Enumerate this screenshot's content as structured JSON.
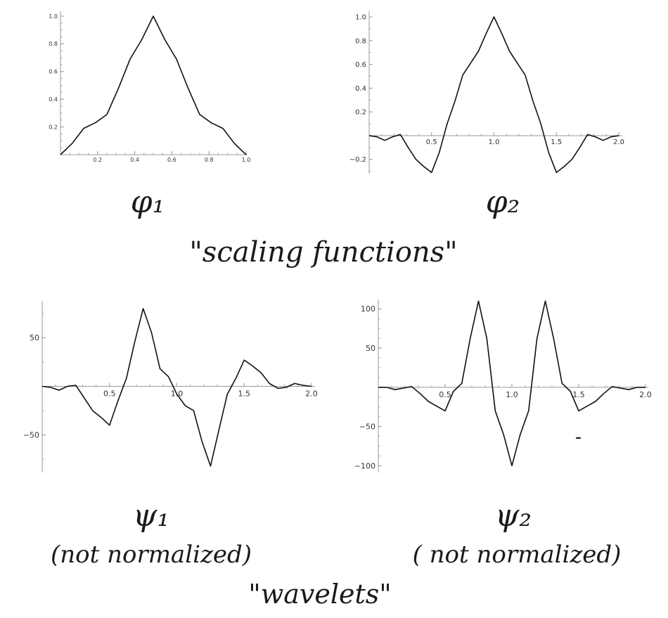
{
  "chart_data": [
    {
      "type": "line",
      "x": [
        0,
        0.0625,
        0.125,
        0.1875,
        0.25,
        0.3125,
        0.375,
        0.4375,
        0.5,
        0.5625,
        0.625,
        0.6875,
        0.75,
        0.8125,
        0.875,
        0.9375,
        1.0
      ],
      "y": [
        0,
        0.08,
        0.19,
        0.23,
        0.29,
        0.48,
        0.69,
        0.83,
        1.0,
        0.83,
        0.69,
        0.48,
        0.29,
        0.23,
        0.19,
        0.08,
        0
      ],
      "xlim": [
        0,
        1.0
      ],
      "ylim": [
        0,
        1.0
      ],
      "xticks": [
        0.2,
        0.4,
        0.6,
        0.8,
        1.0
      ],
      "yticks": [
        0.2,
        0.4,
        0.6,
        0.8,
        1.0
      ],
      "xtick_labels": [
        "0.2",
        "0.4",
        "0.6",
        "0.8",
        "1.0"
      ],
      "ytick_labels": [
        "0.2",
        "0.4",
        "0.6",
        "0.8",
        "1.0"
      ],
      "grid": false
    },
    {
      "type": "line",
      "x": [
        0,
        0.0625,
        0.125,
        0.1875,
        0.25,
        0.3125,
        0.375,
        0.4375,
        0.5,
        0.5625,
        0.625,
        0.6875,
        0.75,
        0.8125,
        0.875,
        0.9375,
        1.0,
        1.0625,
        1.125,
        1.1875,
        1.25,
        1.3125,
        1.375,
        1.4375,
        1.5,
        1.5625,
        1.625,
        1.6875,
        1.75,
        1.8125,
        1.875,
        1.9375,
        2.0
      ],
      "y": [
        0,
        -0.01,
        -0.04,
        -0.01,
        0.01,
        -0.1,
        -0.2,
        -0.26,
        -0.31,
        -0.14,
        0.1,
        0.29,
        0.51,
        0.61,
        0.71,
        0.86,
        1.0,
        0.86,
        0.71,
        0.61,
        0.51,
        0.29,
        0.1,
        -0.14,
        -0.31,
        -0.26,
        -0.2,
        -0.1,
        0.01,
        -0.01,
        -0.04,
        -0.01,
        0
      ],
      "xlim": [
        0,
        2.0
      ],
      "ylim": [
        -0.32,
        1.0
      ],
      "xticks": [
        0.5,
        1.0,
        1.5,
        2.0
      ],
      "yticks": [
        -0.2,
        0.2,
        0.4,
        0.6,
        0.8,
        1.0
      ],
      "xtick_labels": [
        "0.5",
        "1.0",
        "1.5",
        "2.0"
      ],
      "ytick_labels": [
        "−0.2",
        "0.2",
        "0.4",
        "0.6",
        "0.8",
        "1.0"
      ],
      "grid": false
    },
    {
      "type": "line",
      "x": [
        0,
        0.0625,
        0.125,
        0.1875,
        0.25,
        0.3125,
        0.375,
        0.4375,
        0.5,
        0.5625,
        0.625,
        0.6875,
        0.75,
        0.8125,
        0.875,
        0.9375,
        1.0,
        1.0625,
        1.125,
        1.1875,
        1.25,
        1.3125,
        1.375,
        1.4375,
        1.5,
        1.5625,
        1.625,
        1.6875,
        1.75,
        1.8125,
        1.875,
        1.9375,
        2.0
      ],
      "y": [
        0,
        -1,
        -4,
        0,
        1,
        -12,
        -25,
        -32,
        -40,
        -15,
        8,
        46,
        80,
        55,
        18,
        10,
        -8,
        -20,
        -25,
        -57,
        -82,
        -45,
        -8,
        8,
        27,
        21,
        14,
        3,
        -2,
        -1,
        3,
        1,
        0
      ],
      "xlim": [
        0,
        2.0
      ],
      "ylim": [
        -85,
        85
      ],
      "xticks": [
        0.5,
        1.0,
        1.5,
        2.0
      ],
      "yticks": [
        -50,
        50
      ],
      "xtick_labels": [
        "0.5",
        "1.0",
        "1.5",
        "2.0"
      ],
      "ytick_labels": [
        "−50",
        "50"
      ],
      "grid": false
    },
    {
      "type": "line",
      "x": [
        0,
        0.0625,
        0.125,
        0.1875,
        0.25,
        0.3125,
        0.375,
        0.4375,
        0.5,
        0.5625,
        0.625,
        0.6875,
        0.75,
        0.8125,
        0.875,
        0.9375,
        1.0,
        1.0625,
        1.125,
        1.1875,
        1.25,
        1.3125,
        1.375,
        1.4375,
        1.5,
        1.5625,
        1.625,
        1.6875,
        1.75,
        1.8125,
        1.875,
        1.9375,
        2.0
      ],
      "y": [
        0,
        0,
        -3,
        -1,
        1,
        -8,
        -18,
        -24,
        -30,
        -5,
        5,
        62,
        110,
        62,
        -30,
        -60,
        -100,
        -60,
        -30,
        62,
        110,
        62,
        5,
        -5,
        -30,
        -24,
        -18,
        -8,
        1,
        -1,
        -3,
        0,
        0
      ],
      "xlim": [
        0,
        2.0
      ],
      "ylim": [
        -105,
        112
      ],
      "xticks": [
        0.5,
        1.0,
        1.5,
        2.0
      ],
      "yticks": [
        -100,
        -50,
        50,
        100
      ],
      "xtick_labels": [
        "0.5",
        "1.0",
        "1.5",
        "2.0"
      ],
      "ytick_labels": [
        "−100",
        "−50",
        "50",
        "100"
      ],
      "grid": false
    }
  ],
  "annotations": {
    "phi1": "φ₁",
    "phi2": "φ₂",
    "scaling": "\"scaling functions\"",
    "psi1": "ψ₁",
    "psi1_note": "(not normalized)",
    "psi2": "ψ₂",
    "psi2_note": "( not normalized)",
    "wavelets": "\"wavelets\""
  }
}
